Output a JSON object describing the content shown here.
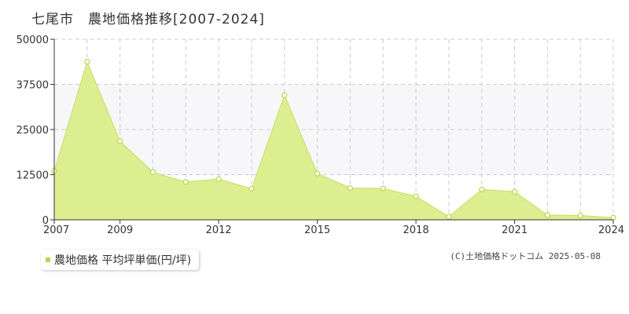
{
  "title": "七尾市　農地価格推移[2007-2024]",
  "legend_label": "農地価格 平均坪単価(円/坪)",
  "copyright": "(C)土地価格ドットコム 2025-05-08",
  "colors": {
    "fill": "#dcee8f",
    "line": "#c3e06a",
    "marker": "#b5d94a",
    "band": "#f7f7f9",
    "grid": "#cccccc"
  },
  "chart_data": {
    "type": "area",
    "title": "七尾市　農地価格推移[2007-2024]",
    "xlabel": "",
    "ylabel": "",
    "x": [
      2007,
      2008,
      2009,
      2010,
      2011,
      2012,
      2013,
      2014,
      2015,
      2016,
      2017,
      2018,
      2019,
      2020,
      2021,
      2022,
      2023,
      2024
    ],
    "series": [
      {
        "name": "農地価格 平均坪単価(円/坪)",
        "values": [
          13500,
          43800,
          21800,
          13200,
          10500,
          11300,
          8600,
          34500,
          12800,
          8800,
          8700,
          6500,
          900,
          8400,
          7800,
          1300,
          1200,
          600
        ]
      }
    ],
    "xlim": [
      2007,
      2024
    ],
    "ylim": [
      0,
      50000
    ],
    "yticks": [
      "0",
      "12500",
      "25000",
      "37500",
      "50000"
    ],
    "xticks": [
      2007,
      2009,
      2012,
      2015,
      2018,
      2021,
      2024
    ],
    "grid": true,
    "legend": "bottom-left"
  }
}
